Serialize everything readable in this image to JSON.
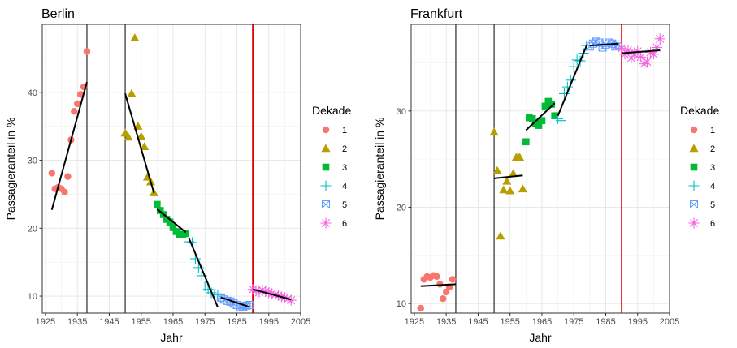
{
  "legend": {
    "title": "Dekade",
    "items": [
      {
        "label": "1",
        "color": "#F8766D",
        "shape": "circle"
      },
      {
        "label": "2",
        "color": "#B79F00",
        "shape": "triangle"
      },
      {
        "label": "3",
        "color": "#00BA38",
        "shape": "square"
      },
      {
        "label": "4",
        "color": "#00BFC4",
        "shape": "plus"
      },
      {
        "label": "5",
        "color": "#619CFF",
        "shape": "boxcross"
      },
      {
        "label": "6",
        "color": "#F564E3",
        "shape": "star"
      }
    ]
  },
  "chart_data": [
    {
      "type": "scatter",
      "title": "Berlin",
      "xlabel": "Jahr",
      "ylabel": "Passagieranteil in %",
      "xlim": [
        1924,
        2005
      ],
      "ylim": [
        7.5,
        50
      ],
      "xticks": [
        "1925",
        "1935",
        "1945",
        "1955",
        "1965",
        "1975",
        "1985",
        "1995",
        "2005"
      ],
      "yticks": [
        "10",
        "20",
        "30",
        "40"
      ],
      "black_vlines": [
        1938,
        1950
      ],
      "red_vline": 1990,
      "series": [
        {
          "name": "1",
          "points": [
            [
              1927,
              28.1
            ],
            [
              1928,
              25.8
            ],
            [
              1929,
              26.0
            ],
            [
              1930,
              25.8
            ],
            [
              1931,
              25.3
            ],
            [
              1932,
              27.6
            ],
            [
              1933,
              33.0
            ],
            [
              1934,
              37.2
            ],
            [
              1935,
              38.3
            ],
            [
              1936,
              39.7
            ],
            [
              1937,
              40.8
            ],
            [
              1938,
              46.0
            ]
          ]
        },
        {
          "name": "2",
          "points": [
            [
              1950,
              34.0
            ],
            [
              1951,
              33.4
            ],
            [
              1952,
              39.8
            ],
            [
              1953,
              48.0
            ],
            [
              1954,
              35.0
            ],
            [
              1955,
              33.5
            ],
            [
              1956,
              32.0
            ],
            [
              1957,
              27.5
            ],
            [
              1958,
              26.8
            ],
            [
              1959,
              25.2
            ]
          ]
        },
        {
          "name": "3",
          "points": [
            [
              1960,
              23.5
            ],
            [
              1961,
              22.6
            ],
            [
              1962,
              22.0
            ],
            [
              1963,
              21.3
            ],
            [
              1964,
              20.9
            ],
            [
              1965,
              20.1
            ],
            [
              1966,
              19.5
            ],
            [
              1967,
              19.0
            ],
            [
              1968,
              19.1
            ],
            [
              1969,
              19.2
            ]
          ]
        },
        {
          "name": "4",
          "points": [
            [
              1970,
              18.0
            ],
            [
              1971,
              17.9
            ],
            [
              1972,
              15.5
            ],
            [
              1973,
              14.2
            ],
            [
              1974,
              13.0
            ],
            [
              1975,
              11.5
            ],
            [
              1976,
              11.0
            ],
            [
              1977,
              10.5
            ],
            [
              1978,
              10.3
            ],
            [
              1979,
              10.2
            ]
          ]
        },
        {
          "name": "5",
          "points": [
            [
              1980,
              9.8
            ],
            [
              1981,
              9.5
            ],
            [
              1982,
              9.3
            ],
            [
              1983,
              9.2
            ],
            [
              1984,
              8.9
            ],
            [
              1985,
              8.7
            ],
            [
              1986,
              8.5
            ],
            [
              1987,
              8.4
            ],
            [
              1988,
              8.6
            ],
            [
              1989,
              8.7
            ]
          ]
        },
        {
          "name": "6",
          "points": [
            [
              1990,
              11.0
            ],
            [
              1991,
              10.8
            ],
            [
              1992,
              10.6
            ],
            [
              1993,
              10.9
            ],
            [
              1994,
              10.7
            ],
            [
              1995,
              10.5
            ],
            [
              1996,
              10.4
            ],
            [
              1997,
              10.2
            ],
            [
              1998,
              10.1
            ],
            [
              1999,
              9.9
            ],
            [
              2000,
              9.8
            ],
            [
              2001,
              9.6
            ],
            [
              2002,
              9.4
            ]
          ]
        }
      ],
      "fits": [
        {
          "x": [
            1927,
            1938
          ],
          "y": [
            22.7,
            41.5
          ]
        },
        {
          "x": [
            1950,
            1959
          ],
          "y": [
            39.8,
            25.2
          ]
        },
        {
          "x": [
            1960,
            1969
          ],
          "y": [
            22.8,
            19.4
          ]
        },
        {
          "x": [
            1970,
            1979
          ],
          "y": [
            18.5,
            8.4
          ]
        },
        {
          "x": [
            1980,
            1989
          ],
          "y": [
            9.8,
            8.4
          ]
        },
        {
          "x": [
            1990,
            2002
          ],
          "y": [
            11.0,
            9.5
          ]
        }
      ]
    },
    {
      "type": "scatter",
      "title": "Frankfurt",
      "xlabel": "Jahr",
      "ylabel": "Passagieranteil in %",
      "xlim": [
        1924,
        2005
      ],
      "ylim": [
        9,
        39
      ],
      "xticks": [
        "1925",
        "1935",
        "1945",
        "1955",
        "1965",
        "1975",
        "1985",
        "1995",
        "2005"
      ],
      "yticks": [
        "10",
        "20",
        "30"
      ],
      "black_vlines": [
        1938,
        1950
      ],
      "red_vline": 1990,
      "series": [
        {
          "name": "1",
          "points": [
            [
              1927,
              9.5
            ],
            [
              1928,
              12.5
            ],
            [
              1929,
              12.8
            ],
            [
              1930,
              12.7
            ],
            [
              1931,
              12.9
            ],
            [
              1932,
              12.8
            ],
            [
              1933,
              12.0
            ],
            [
              1934,
              10.5
            ],
            [
              1935,
              11.2
            ],
            [
              1936,
              11.7
            ],
            [
              1937,
              12.5
            ]
          ]
        },
        {
          "name": "2",
          "points": [
            [
              1950,
              27.8
            ],
            [
              1951,
              23.8
            ],
            [
              1952,
              17.0
            ],
            [
              1953,
              21.8
            ],
            [
              1954,
              22.7
            ],
            [
              1955,
              21.7
            ],
            [
              1956,
              23.5
            ],
            [
              1957,
              25.2
            ],
            [
              1958,
              25.2
            ],
            [
              1959,
              21.9
            ]
          ]
        },
        {
          "name": "3",
          "points": [
            [
              1960,
              26.8
            ],
            [
              1961,
              29.3
            ],
            [
              1962,
              29.2
            ],
            [
              1963,
              28.7
            ],
            [
              1964,
              28.5
            ],
            [
              1965,
              29.0
            ],
            [
              1966,
              30.5
            ],
            [
              1967,
              31.0
            ],
            [
              1968,
              30.7
            ],
            [
              1969,
              29.5
            ]
          ]
        },
        {
          "name": "4",
          "points": [
            [
              1970,
              29.2
            ],
            [
              1971,
              29.0
            ],
            [
              1972,
              31.8
            ],
            [
              1973,
              32.5
            ],
            [
              1974,
              33.2
            ],
            [
              1975,
              34.6
            ],
            [
              1976,
              35.3
            ],
            [
              1977,
              35.2
            ],
            [
              1978,
              36.0
            ],
            [
              1979,
              36.8
            ]
          ]
        },
        {
          "name": "5",
          "points": [
            [
              1980,
              36.7
            ],
            [
              1981,
              37.0
            ],
            [
              1982,
              37.2
            ],
            [
              1983,
              37.1
            ],
            [
              1984,
              36.6
            ],
            [
              1985,
              36.9
            ],
            [
              1986,
              37.1
            ],
            [
              1987,
              37.0
            ],
            [
              1988,
              36.7
            ],
            [
              1989,
              36.9
            ]
          ]
        },
        {
          "name": "6",
          "points": [
            [
              1990,
              36.5
            ],
            [
              1991,
              35.9
            ],
            [
              1992,
              36.3
            ],
            [
              1993,
              35.5
            ],
            [
              1994,
              35.9
            ],
            [
              1995,
              36.2
            ],
            [
              1996,
              35.6
            ],
            [
              1997,
              34.9
            ],
            [
              1998,
              35.1
            ],
            [
              1999,
              36.1
            ],
            [
              2000,
              35.9
            ],
            [
              2001,
              36.6
            ],
            [
              2002,
              37.5
            ]
          ]
        }
      ],
      "fits": [
        {
          "x": [
            1927,
            1938
          ],
          "y": [
            11.8,
            12.0
          ]
        },
        {
          "x": [
            1950,
            1959
          ],
          "y": [
            23.0,
            23.3
          ]
        },
        {
          "x": [
            1960,
            1969
          ],
          "y": [
            28.0,
            30.8
          ]
        },
        {
          "x": [
            1970,
            1979
          ],
          "y": [
            29.5,
            36.8
          ]
        },
        {
          "x": [
            1980,
            1989
          ],
          "y": [
            36.8,
            37.0
          ]
        },
        {
          "x": [
            1990,
            2002
          ],
          "y": [
            36.0,
            36.3
          ]
        }
      ]
    }
  ]
}
